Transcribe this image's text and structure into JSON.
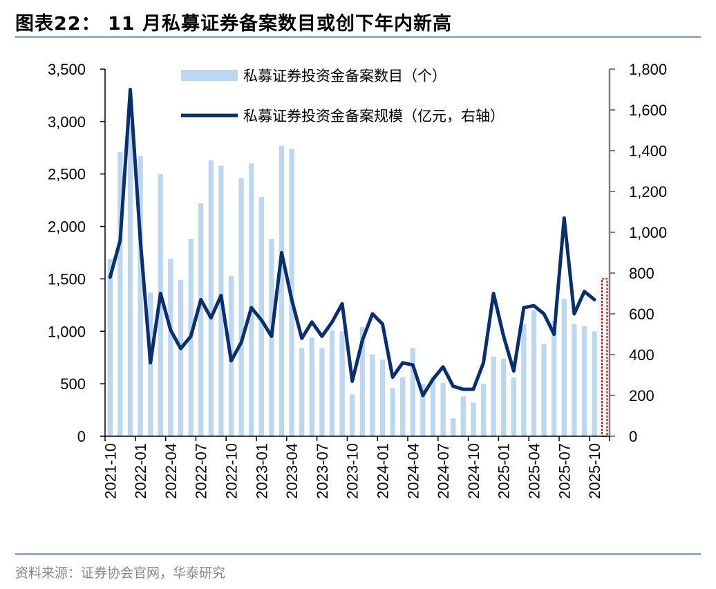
{
  "title": "图表22：  11 月私募证券备案数目或创下年内新高",
  "source": "资料来源：证券协会官网，华泰研究",
  "colors": {
    "bar": "#bdd7ee",
    "line": "#0b2f6b",
    "axis": "#000000",
    "right_axis": "#7f7f7f",
    "highlight": "#c00000",
    "rule": "#9aafc7"
  },
  "chart_data": {
    "type": "bar+line",
    "categories": [
      "2021-10",
      "2021-11",
      "2021-12",
      "2022-01",
      "2022-02",
      "2022-03",
      "2022-04",
      "2022-05",
      "2022-06",
      "2022-07",
      "2022-08",
      "2022-09",
      "2022-10",
      "2022-11",
      "2022-12",
      "2023-01",
      "2023-02",
      "2023-03",
      "2023-04",
      "2023-05",
      "2023-06",
      "2023-07",
      "2023-08",
      "2023-09",
      "2023-10",
      "2023-11",
      "2023-12",
      "2024-01",
      "2024-02",
      "2024-03",
      "2024-04",
      "2024-05",
      "2024-06",
      "2024-07",
      "2024-08",
      "2024-09",
      "2024-10",
      "2024-11",
      "2024-12",
      "2025-01",
      "2025-02",
      "2025-03",
      "2025-04",
      "2025-05",
      "2025-06",
      "2025-07",
      "2025-08",
      "2025-09",
      "2025-10",
      "2025-11"
    ],
    "x_tick_labels": [
      "2021-10",
      "2022-01",
      "2022-04",
      "2022-07",
      "2022-10",
      "2023-01",
      "2023-04",
      "2023-07",
      "2023-10",
      "2024-01",
      "2024-04",
      "2024-07",
      "2024-10",
      "2025-01",
      "2025-04",
      "2025-07",
      "2025-10"
    ],
    "series": [
      {
        "name": "私募证券投资金备案数目（个）",
        "type": "bar",
        "axis": "left",
        "values": [
          1690,
          2710,
          3000,
          2670,
          1370,
          2500,
          1690,
          1490,
          1880,
          2220,
          2630,
          2580,
          1530,
          2460,
          2600,
          2280,
          1880,
          2770,
          2740,
          840,
          940,
          840,
          1010,
          1000,
          400,
          1040,
          780,
          730,
          460,
          560,
          840,
          500,
          560,
          510,
          170,
          380,
          320,
          500,
          760,
          740,
          560,
          1070,
          1200,
          880,
          1100,
          1310,
          1070,
          1050,
          1000,
          1500
        ]
      },
      {
        "name": "私募证券投资金备案规模（亿元，右轴）",
        "type": "line",
        "axis": "right",
        "values": [
          780,
          960,
          1700,
          960,
          360,
          700,
          520,
          430,
          490,
          670,
          580,
          690,
          370,
          460,
          630,
          570,
          490,
          900,
          670,
          480,
          560,
          490,
          560,
          650,
          270,
          470,
          600,
          550,
          290,
          360,
          350,
          200,
          280,
          340,
          245,
          230,
          230,
          360,
          700,
          490,
          320,
          630,
          640,
          600,
          500,
          1070,
          600,
          710,
          670,
          null
        ]
      }
    ],
    "highlight_bar": "2025-11",
    "y_left": {
      "min": 0,
      "max": 3500,
      "ticks": [
        0,
        500,
        1000,
        1500,
        2000,
        2500,
        3000,
        3500
      ],
      "tick_labels": [
        "0",
        "500",
        "1,000",
        "1,500",
        "2,000",
        "2,500",
        "3,000",
        "3,500"
      ]
    },
    "y_right": {
      "min": 0,
      "max": 1800,
      "ticks": [
        0,
        200,
        400,
        600,
        800,
        1000,
        1200,
        1400,
        1600,
        1800
      ],
      "tick_labels": [
        "0",
        "200",
        "400",
        "600",
        "800",
        "1,000",
        "1,200",
        "1,400",
        "1,600",
        "1,800"
      ]
    },
    "legend": [
      "私募证券投资金备案数目（个）",
      "私募证券投资金备案规模（亿元，右轴）"
    ],
    "legend_position": "top-center"
  }
}
